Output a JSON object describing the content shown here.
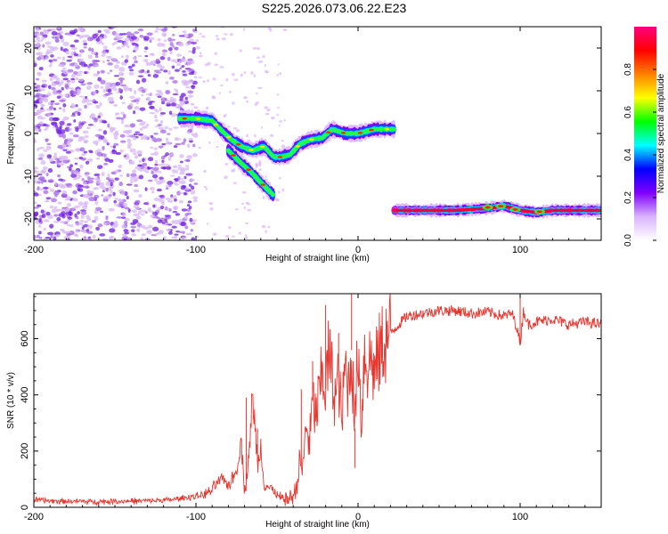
{
  "title": "S225.2026.073.06.22.E23",
  "colors": {
    "snr_line": "#e8352e",
    "scatter_light": "#d8b8f5",
    "scatter_mid": "#a66ae8",
    "scatter_dark": "#6f1fe0"
  },
  "chart_data": [
    {
      "type": "heatmap",
      "title": "",
      "xlabel": "Height of straight line (km)",
      "ylabel": "Frequency (Hz)",
      "xlim": [
        -200,
        150
      ],
      "ylim": [
        -25,
        25
      ],
      "xticks": [
        -200,
        -100,
        0,
        100
      ],
      "yticks": [
        -20,
        -10,
        0,
        10,
        20
      ],
      "colorbar": {
        "label": "Normalized spectral amplitude",
        "range": [
          0.0,
          1.0
        ],
        "ticks": [
          "0.0",
          "0.2",
          "0.4",
          "0.6",
          "0.8"
        ],
        "tick_values": [
          0.0,
          0.2,
          0.4,
          0.6,
          0.8
        ],
        "colormap": [
          "#ffffff",
          "#d9b3ff",
          "#8000ff",
          "#0000ff",
          "#00ffff",
          "#00ff00",
          "#ffff00",
          "#ff8000",
          "#ff0000",
          "#ff0080"
        ]
      },
      "signal_tracks": [
        {
          "name": "main-track",
          "points": [
            [
              -110,
              3.5
            ],
            [
              -100,
              3.5
            ],
            [
              -90,
              3
            ],
            [
              -85,
              1
            ],
            [
              -78,
              -1.5
            ],
            [
              -72,
              -3
            ],
            [
              -65,
              -4
            ],
            [
              -58,
              -3
            ],
            [
              -52,
              -5.5
            ],
            [
              -48,
              -5.5
            ],
            [
              -42,
              -5
            ],
            [
              -36,
              -2.5
            ],
            [
              -30,
              -1.5
            ],
            [
              -22,
              -1
            ],
            [
              -16,
              1
            ],
            [
              -8,
              0
            ],
            [
              0,
              0
            ],
            [
              10,
              1
            ],
            [
              22,
              1
            ]
          ]
        },
        {
          "name": "branch-track",
          "points": [
            [
              -80,
              -4
            ],
            [
              -72,
              -7
            ],
            [
              -66,
              -9
            ],
            [
              -60,
              -11.5
            ],
            [
              -52,
              -14.5
            ]
          ]
        },
        {
          "name": "low-track",
          "points": [
            [
              22,
              -18
            ],
            [
              60,
              -18
            ],
            [
              80,
              -17.5
            ],
            [
              90,
              -17
            ],
            [
              100,
              -18
            ],
            [
              110,
              -18.5
            ],
            [
              120,
              -18
            ],
            [
              150,
              -18
            ]
          ]
        }
      ]
    },
    {
      "type": "line",
      "title": "",
      "xlabel": "Height of straight line (km)",
      "ylabel": "SNR (10 * v/v)",
      "xlim": [
        -200,
        150
      ],
      "ylim": [
        0,
        760
      ],
      "xticks": [
        -200,
        -100,
        0,
        100
      ],
      "yticks": [
        0,
        200,
        400,
        600
      ],
      "series": [
        {
          "name": "SNR",
          "x": [
            -200,
            -180,
            -160,
            -140,
            -120,
            -110,
            -100,
            -95,
            -90,
            -85,
            -80,
            -75,
            -72,
            -70,
            -68,
            -65,
            -62,
            -60,
            -58,
            -55,
            -52,
            -50,
            -45,
            -40,
            -38,
            -36,
            -34,
            -32,
            -30,
            -28,
            -26,
            -24,
            -22,
            -20,
            -18,
            -16,
            -14,
            -12,
            -10,
            -8,
            -6,
            -4,
            -2,
            0,
            2,
            4,
            6,
            8,
            10,
            12,
            15,
            18,
            20,
            25,
            30,
            40,
            50,
            60,
            70,
            80,
            90,
            95,
            98,
            100,
            102,
            105,
            110,
            120,
            130,
            140,
            150
          ],
          "y": [
            25,
            22,
            20,
            22,
            25,
            30,
            40,
            45,
            60,
            100,
            80,
            130,
            250,
            60,
            130,
            390,
            160,
            210,
            90,
            70,
            60,
            40,
            25,
            40,
            70,
            160,
            130,
            300,
            220,
            380,
            320,
            400,
            480,
            420,
            550,
            460,
            390,
            460,
            300,
            510,
            420,
            560,
            280,
            600,
            300,
            560,
            500,
            540,
            470,
            520,
            580,
            600,
            620,
            650,
            680,
            690,
            700,
            700,
            690,
            695,
            680,
            690,
            640,
            580,
            700,
            650,
            660,
            670,
            650,
            660,
            650
          ]
        }
      ],
      "spikes": [
        [
          -69,
          390
        ],
        [
          -62,
          280
        ],
        [
          -48,
          55
        ],
        [
          -35,
          420
        ],
        [
          -28,
          520
        ],
        [
          -20,
          720
        ],
        [
          -12,
          620
        ],
        [
          -4,
          760
        ],
        [
          -2,
          140
        ],
        [
          100,
          760
        ]
      ]
    }
  ]
}
